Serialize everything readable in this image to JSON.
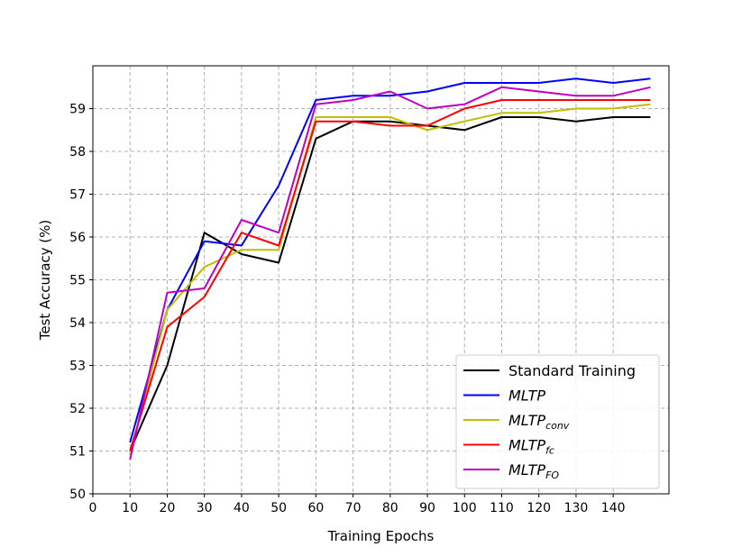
{
  "chart_data": {
    "type": "line",
    "title": "",
    "xlabel": "Training Epochs",
    "ylabel": "Test Accuracy (%)",
    "xlim": [
      0,
      155
    ],
    "ylim": [
      50,
      60
    ],
    "xticks": [
      0,
      10,
      20,
      30,
      40,
      50,
      60,
      70,
      80,
      90,
      100,
      110,
      120,
      130,
      140
    ],
    "yticks": [
      50,
      51,
      52,
      53,
      54,
      55,
      56,
      57,
      58,
      59
    ],
    "grid": true,
    "legend": "bottom-right",
    "x": [
      10,
      20,
      30,
      40,
      50,
      60,
      70,
      80,
      90,
      100,
      110,
      120,
      130,
      140,
      150
    ],
    "series": [
      {
        "name": "Standard Training",
        "color": "#000000",
        "values": [
          51.0,
          53.0,
          56.1,
          55.6,
          55.4,
          58.3,
          58.7,
          58.7,
          58.6,
          58.5,
          58.8,
          58.8,
          58.7,
          58.8,
          58.8
        ]
      },
      {
        "name": "MLTP",
        "color": "#0000ff",
        "values": [
          51.2,
          54.3,
          55.9,
          55.8,
          57.2,
          59.2,
          59.3,
          59.3,
          59.4,
          59.6,
          59.6,
          59.6,
          59.7,
          59.6,
          59.7
        ]
      },
      {
        "name": "MLTP",
        "subscript": "conv",
        "color": "#bfbf00",
        "values": [
          50.9,
          54.3,
          55.3,
          55.7,
          55.7,
          58.8,
          58.8,
          58.8,
          58.5,
          58.7,
          58.9,
          58.9,
          59.0,
          59.0,
          59.1
        ]
      },
      {
        "name": "MLTP",
        "subscript": "fc",
        "color": "#ff0000",
        "values": [
          51.0,
          53.9,
          54.6,
          56.1,
          55.8,
          58.7,
          58.7,
          58.6,
          58.6,
          59.0,
          59.2,
          59.2,
          59.2,
          59.2,
          59.2
        ]
      },
      {
        "name": "MLTP",
        "subscript": "FO",
        "color": "#bf00bf",
        "values": [
          50.8,
          54.7,
          54.8,
          56.4,
          56.1,
          59.1,
          59.2,
          59.4,
          59.0,
          59.1,
          59.5,
          59.4,
          59.3,
          59.3,
          59.5
        ]
      }
    ]
  }
}
